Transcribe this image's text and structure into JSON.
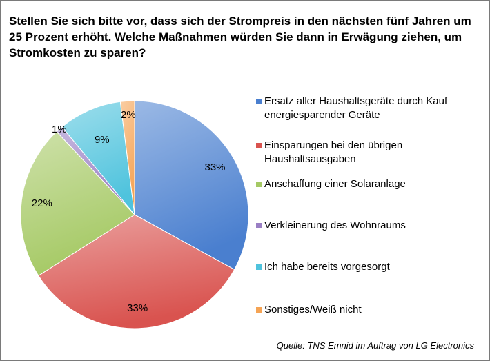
{
  "chart_data": {
    "type": "pie",
    "title": "Stellen Sie sich bitte vor, dass sich der Strompreis in den nächsten fünf Jahren um 25 Prozent erhöht. Welche Maßnahmen würden Sie dann in Erwägung ziehen, um Stromkosten zu sparen?",
    "slices": [
      {
        "label": "Ersatz aller Haushaltsgeräte durch Kauf energiesparender Geräte",
        "value": 33,
        "display": "33%",
        "color": "#4a7fcf"
      },
      {
        "label": "Einsparungen bei den übrigen Haushaltsausgaben",
        "value": 33,
        "display": "33%",
        "color": "#d9534f"
      },
      {
        "label": "Anschaffung einer Solaranlage",
        "value": 22,
        "display": "22%",
        "color": "#a5c964"
      },
      {
        "label": "Verkleinerung des Wohnraums",
        "value": 1,
        "display": "1%",
        "color": "#9a7fc4"
      },
      {
        "label": "Ich habe bereits vorgesorgt",
        "value": 9,
        "display": "9%",
        "color": "#4fc3dd"
      },
      {
        "label": "Sonstiges/Weiß nicht",
        "value": 2,
        "display": "2%",
        "color": "#f5a455"
      }
    ],
    "legend_position": "right",
    "source": "Quelle: TNS Emnid im Auftrag von LG Electronics"
  }
}
